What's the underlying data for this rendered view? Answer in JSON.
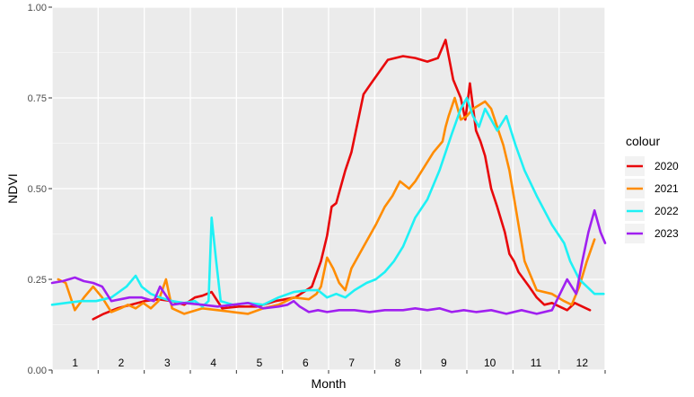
{
  "chart_data": {
    "type": "line",
    "xlabel": "Month",
    "ylabel": "NDVI",
    "ylim": [
      0,
      1
    ],
    "yticks": [
      "0.00",
      "0.25",
      "0.50",
      "0.75",
      "1.00"
    ],
    "month_labels": [
      "1",
      "2",
      "3",
      "4",
      "5",
      "6",
      "7",
      "8",
      "9",
      "10",
      "11",
      "12"
    ],
    "x_unit": "day of year",
    "xlim": [
      1,
      365
    ],
    "grid": true,
    "legend": {
      "title": "colour",
      "position": "right"
    },
    "series": [
      {
        "name": "2020",
        "color": "#e8080b",
        "x": [
          28,
          35,
          44,
          53,
          62,
          71,
          80,
          88,
          95,
          100,
          106,
          113,
          124,
          136,
          148,
          161,
          172,
          178,
          182,
          185,
          188,
          194,
          198,
          206,
          211,
          222,
          232,
          240,
          248,
          255,
          260,
          265,
          270,
          273,
          276,
          280,
          283,
          286,
          290,
          294,
          299,
          302,
          305,
          308,
          315,
          320,
          325,
          330,
          335,
          340,
          345,
          350,
          355
        ],
        "y": [
          0.14,
          0.155,
          0.17,
          0.18,
          0.19,
          0.195,
          0.19,
          0.18,
          0.2,
          0.205,
          0.215,
          0.17,
          0.175,
          0.175,
          0.19,
          0.2,
          0.23,
          0.3,
          0.37,
          0.45,
          0.46,
          0.55,
          0.6,
          0.76,
          0.79,
          0.855,
          0.865,
          0.86,
          0.85,
          0.86,
          0.91,
          0.8,
          0.75,
          0.69,
          0.79,
          0.66,
          0.63,
          0.59,
          0.5,
          0.45,
          0.38,
          0.32,
          0.3,
          0.27,
          0.23,
          0.2,
          0.18,
          0.185,
          0.175,
          0.165,
          0.185,
          0.175,
          0.165
        ]
      },
      {
        "name": "2021",
        "color": "#ff8c00",
        "x": [
          5,
          10,
          16,
          22,
          28,
          34,
          40,
          46,
          51,
          56,
          61,
          66,
          71,
          76,
          80,
          88,
          100,
          110,
          120,
          130,
          140,
          150,
          160,
          170,
          175,
          178,
          182,
          186,
          190,
          194,
          198,
          206,
          214,
          220,
          225,
          230,
          236,
          240,
          246,
          252,
          258,
          260,
          262,
          266,
          270,
          274,
          278,
          282,
          286,
          290,
          294,
          298,
          302,
          306,
          312,
          320,
          330,
          338,
          343,
          348,
          353,
          358
        ],
        "y": [
          0.25,
          0.24,
          0.165,
          0.2,
          0.23,
          0.2,
          0.16,
          0.17,
          0.18,
          0.17,
          0.185,
          0.17,
          0.19,
          0.25,
          0.17,
          0.155,
          0.17,
          0.165,
          0.16,
          0.155,
          0.17,
          0.18,
          0.2,
          0.195,
          0.21,
          0.23,
          0.31,
          0.28,
          0.24,
          0.22,
          0.28,
          0.34,
          0.4,
          0.45,
          0.48,
          0.52,
          0.5,
          0.52,
          0.56,
          0.6,
          0.63,
          0.67,
          0.7,
          0.75,
          0.69,
          0.7,
          0.72,
          0.73,
          0.74,
          0.72,
          0.67,
          0.62,
          0.55,
          0.45,
          0.3,
          0.22,
          0.21,
          0.19,
          0.18,
          0.23,
          0.3,
          0.36
        ]
      },
      {
        "name": "2022",
        "color": "#1ef1f5",
        "x": [
          1,
          10,
          20,
          30,
          40,
          50,
          56,
          60,
          66,
          72,
          80,
          88,
          95,
          100,
          104,
          106,
          109,
          112,
          120,
          130,
          140,
          150,
          160,
          170,
          176,
          182,
          188,
          194,
          200,
          208,
          214,
          220,
          226,
          232,
          240,
          248,
          256,
          264,
          270,
          274,
          278,
          282,
          286,
          290,
          294,
          300,
          306,
          312,
          320,
          330,
          338,
          342,
          348,
          358,
          364
        ],
        "y": [
          0.18,
          0.185,
          0.19,
          0.19,
          0.2,
          0.23,
          0.26,
          0.23,
          0.21,
          0.2,
          0.19,
          0.185,
          0.19,
          0.175,
          0.19,
          0.42,
          0.3,
          0.19,
          0.18,
          0.185,
          0.18,
          0.2,
          0.215,
          0.22,
          0.22,
          0.2,
          0.21,
          0.2,
          0.22,
          0.24,
          0.25,
          0.27,
          0.3,
          0.34,
          0.42,
          0.47,
          0.55,
          0.65,
          0.72,
          0.75,
          0.7,
          0.67,
          0.72,
          0.69,
          0.66,
          0.7,
          0.62,
          0.55,
          0.48,
          0.4,
          0.35,
          0.3,
          0.25,
          0.21,
          0.21
        ]
      },
      {
        "name": "2023",
        "color": "#a020f0",
        "x": [
          1,
          8,
          16,
          22,
          28,
          34,
          40,
          46,
          52,
          60,
          68,
          72,
          80,
          88,
          100,
          110,
          120,
          130,
          140,
          150,
          156,
          160,
          164,
          170,
          176,
          182,
          190,
          200,
          210,
          220,
          232,
          240,
          248,
          256,
          264,
          272,
          280,
          290,
          300,
          310,
          320,
          330,
          340,
          346,
          350,
          354,
          358,
          362,
          365
        ],
        "y": [
          0.24,
          0.245,
          0.255,
          0.245,
          0.24,
          0.23,
          0.19,
          0.195,
          0.2,
          0.2,
          0.19,
          0.23,
          0.18,
          0.185,
          0.18,
          0.175,
          0.18,
          0.185,
          0.17,
          0.175,
          0.18,
          0.19,
          0.175,
          0.16,
          0.165,
          0.16,
          0.165,
          0.165,
          0.16,
          0.165,
          0.165,
          0.17,
          0.165,
          0.17,
          0.16,
          0.165,
          0.16,
          0.165,
          0.155,
          0.165,
          0.155,
          0.165,
          0.25,
          0.21,
          0.3,
          0.38,
          0.44,
          0.38,
          0.35
        ]
      }
    ]
  }
}
